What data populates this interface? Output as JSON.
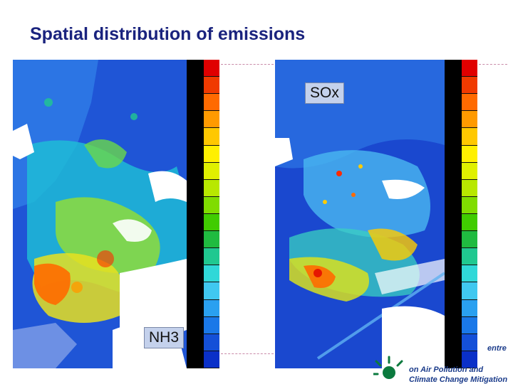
{
  "slide": {
    "title": "Spatial distribution of emissions"
  },
  "maps": {
    "left": {
      "label": "NH3",
      "icon": "emission-map-nh3"
    },
    "right": {
      "label": "SOx",
      "icon": "emission-map-sox"
    }
  },
  "colorbar": {
    "colors": [
      "#e00000",
      "#f03a00",
      "#ff6a00",
      "#ff9a00",
      "#ffc800",
      "#fff000",
      "#e0f000",
      "#b8e800",
      "#80dc00",
      "#40cc00",
      "#20bb40",
      "#20c890",
      "#30d8d8",
      "#40c8f0",
      "#2aa0f0",
      "#1a78e8",
      "#1450d8",
      "#0a30c8"
    ]
  },
  "logo": {
    "line1": "entre",
    "line2": "on Air Pollution and",
    "line3": "Climate Change Mitigation",
    "icon": "sun-logo-icon"
  }
}
